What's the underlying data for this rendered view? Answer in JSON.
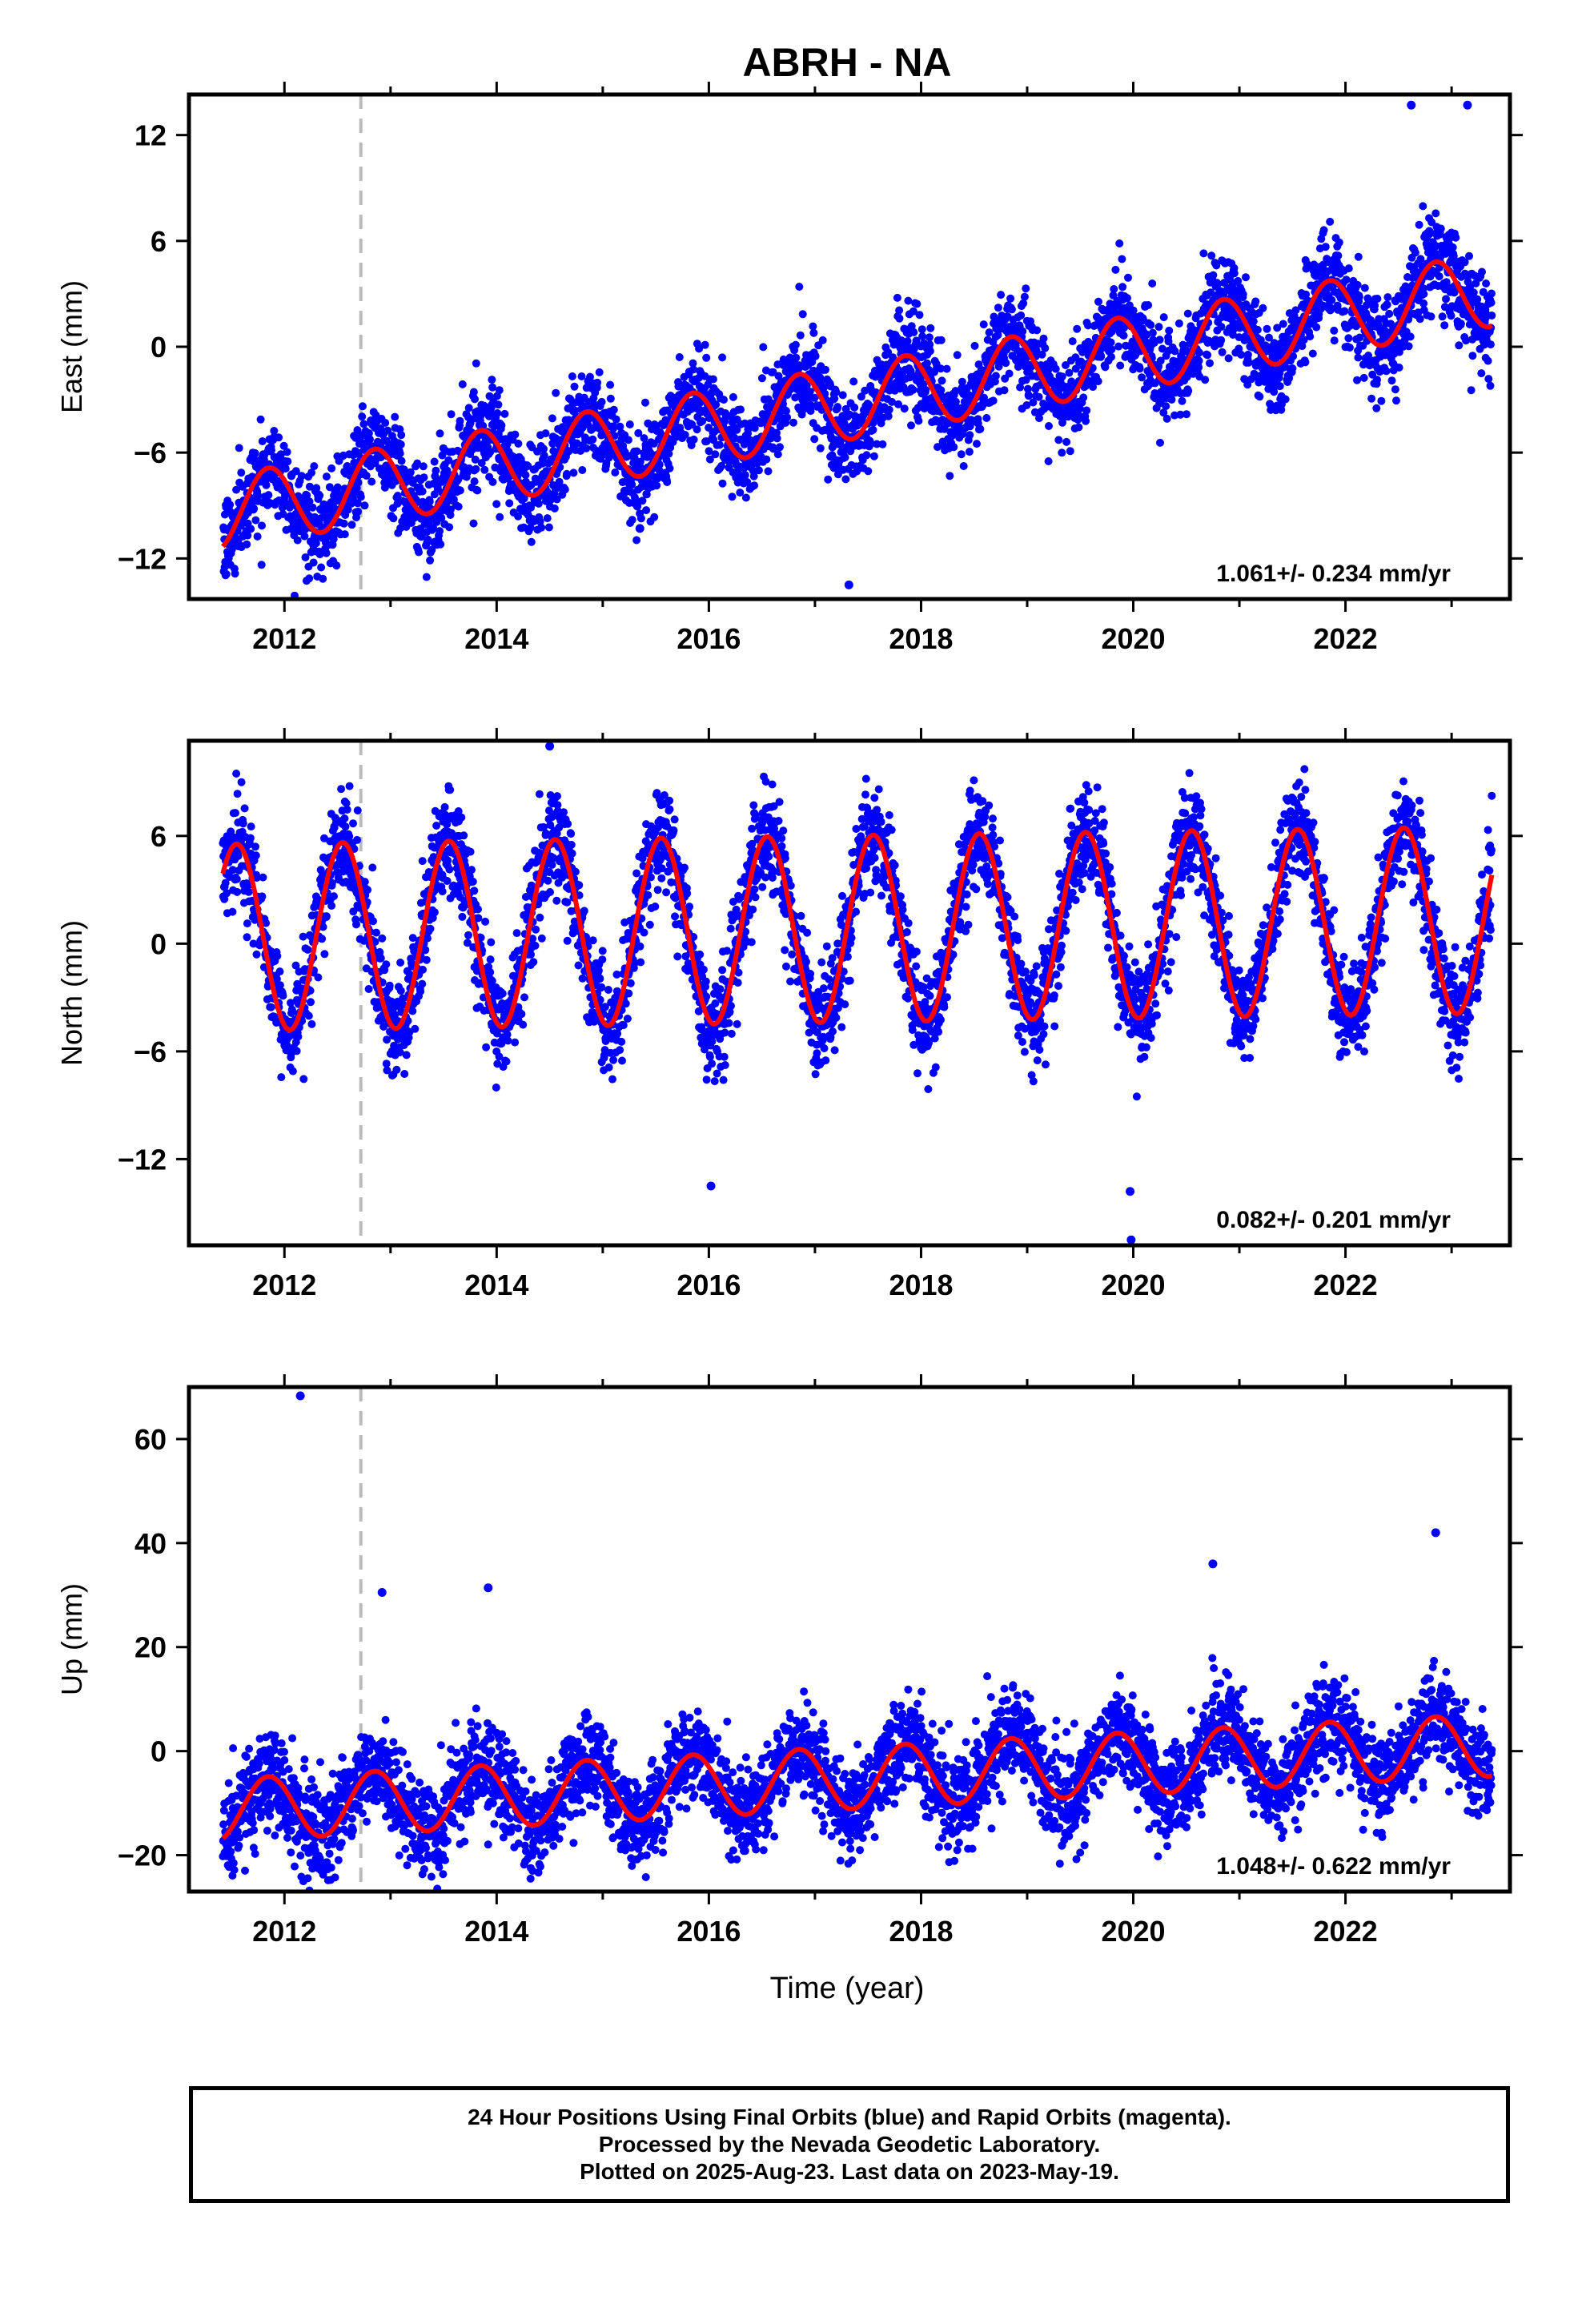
{
  "title": "ABRH - NA",
  "xlabel": "Time (year)",
  "caption": {
    "line1": "24 Hour Positions Using Final Orbits (blue) and Rapid Orbits (magenta).",
    "line2": "Processed by the Nevada Geodetic Laboratory.",
    "line3": "Plotted on 2025-Aug-23. Last data on 2023-May-19."
  },
  "colors": {
    "data": "#0000ff",
    "model": "#ff0000",
    "break_line": "#bbbbbb",
    "axes": "#000000"
  },
  "chart_data": [
    {
      "type": "scatter",
      "panel": "east",
      "ylabel": "East (mm)",
      "xlim": [
        2011.1,
        2023.55
      ],
      "ylim": [
        -14.3,
        14.3
      ],
      "xticks": [
        2012,
        2014,
        2016,
        2018,
        2020,
        2022
      ],
      "yticks": [
        12,
        6,
        0,
        -6,
        -12
      ],
      "equipment_change_year": 2012.72,
      "velocity_label": "1.061+/- 0.234 mm/yr",
      "data_span": [
        2011.42,
        2023.38
      ],
      "model": {
        "offset": -3.5,
        "rate": 1.061,
        "annual_amp": 2.1,
        "annual_phase": 2011.6,
        "jumps": []
      },
      "scatter_sigma": 1.3,
      "outliers": [
        {
          "x": 2017.32,
          "y": -13.5
        },
        {
          "x": 2015.35,
          "y": -10.3
        },
        {
          "x": 2022.62,
          "y": 13.7
        },
        {
          "x": 2023.15,
          "y": 13.7
        }
      ],
      "series": [
        {
          "name": "Final Orbits"
        },
        {
          "name": "Model"
        }
      ]
    },
    {
      "type": "scatter",
      "panel": "north",
      "ylabel": "North (mm)",
      "xlim": [
        2011.1,
        2023.55
      ],
      "ylim": [
        -16.8,
        11.3
      ],
      "xticks": [
        2012,
        2014,
        2016,
        2018,
        2020,
        2022
      ],
      "yticks": [
        6,
        0,
        -6,
        -12
      ],
      "equipment_change_year": 2012.72,
      "velocity_label": "0.082+/- 0.201 mm/yr",
      "data_span": [
        2011.42,
        2023.38
      ],
      "model": {
        "offset": 0.8,
        "rate": 0.082,
        "annual_amp": 5.2,
        "annual_phase": 2011.3,
        "jumps": []
      },
      "scatter_sigma": 1.4,
      "outliers": [
        {
          "x": 2016.02,
          "y": -13.5
        },
        {
          "x": 2019.98,
          "y": -16.5
        },
        {
          "x": 2019.97,
          "y": -13.8
        },
        {
          "x": 2014.5,
          "y": 11.0
        }
      ],
      "series": [
        {
          "name": "Final Orbits"
        },
        {
          "name": "Model"
        }
      ]
    },
    {
      "type": "scatter",
      "panel": "up",
      "ylabel": "Up (mm)",
      "xlim": [
        2011.1,
        2023.55
      ],
      "ylim": [
        -27,
        70
      ],
      "xticks": [
        2012,
        2014,
        2016,
        2018,
        2020,
        2022
      ],
      "yticks": [
        60,
        40,
        20,
        0,
        -20
      ],
      "equipment_change_year": 2012.72,
      "velocity_label": "1.048+/- 0.622 mm/yr",
      "data_span": [
        2011.42,
        2023.38
      ],
      "model": {
        "offset": -5.5,
        "rate": 1.048,
        "annual_amp": 6.0,
        "annual_phase": 2011.6,
        "jumps": []
      },
      "scatter_sigma": 4.5,
      "outliers": [
        {
          "x": 2012.15,
          "y": 68.3
        },
        {
          "x": 2012.92,
          "y": 30.5
        },
        {
          "x": 2013.92,
          "y": 31.4
        },
        {
          "x": 2020.75,
          "y": 36.0
        },
        {
          "x": 2022.85,
          "y": 42.0
        }
      ],
      "series": [
        {
          "name": "Final Orbits"
        },
        {
          "name": "Model"
        }
      ]
    }
  ]
}
